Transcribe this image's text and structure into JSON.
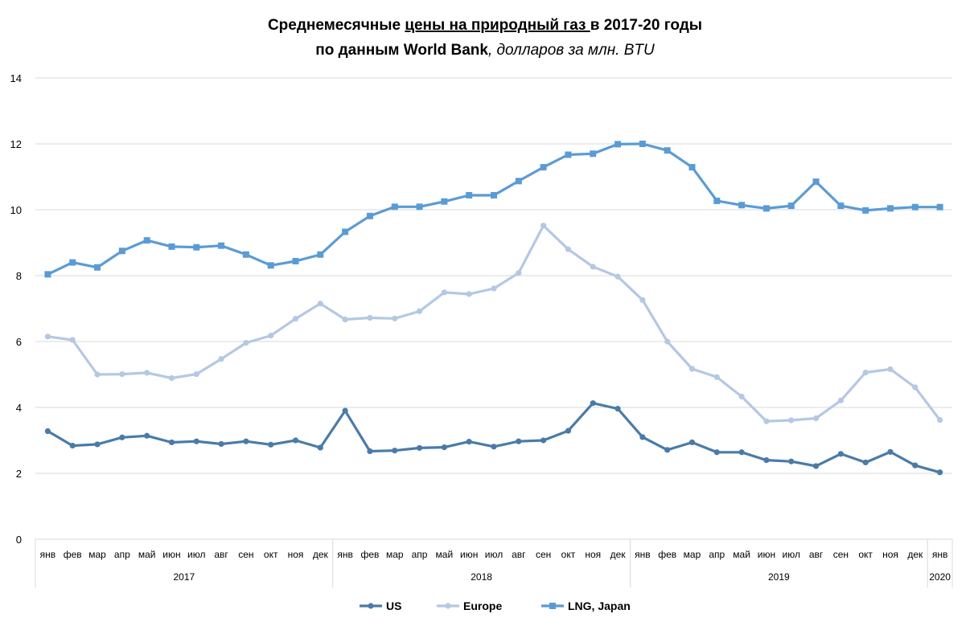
{
  "chart_data": {
    "type": "line",
    "title_line1_pre": "Среднемесячные ",
    "title_line1_underlined": "цены на природный газ ",
    "title_line1_post": "в 2017-20 годы",
    "title_line2_bold": "по данным World Bank",
    "title_line2_italic": ", долларов за млн. BTU",
    "ylim": [
      0,
      14
    ],
    "yticks": [
      "0",
      "2",
      "4",
      "6",
      "8",
      "10",
      "12",
      "14"
    ],
    "grid": true,
    "legend_position": "bottom",
    "months": [
      "янв",
      "фев",
      "мар",
      "апр",
      "май",
      "июн",
      "июл",
      "авг",
      "сен",
      "окт",
      "ноя",
      "дек",
      "янв",
      "фев",
      "мар",
      "апр",
      "май",
      "июн",
      "июл",
      "авг",
      "сен",
      "окт",
      "ноя",
      "дек",
      "янв",
      "фев",
      "мар",
      "апр",
      "май",
      "июн",
      "июл",
      "авг",
      "сен",
      "окт",
      "ноя",
      "дек",
      "янв"
    ],
    "years": [
      {
        "label": "2017",
        "start": 0,
        "count": 12
      },
      {
        "label": "2018",
        "start": 12,
        "count": 12
      },
      {
        "label": "2019",
        "start": 24,
        "count": 12
      },
      {
        "label": "2020",
        "start": 36,
        "count": 1
      }
    ],
    "series": [
      {
        "name": "US",
        "color": "#4a7ba8",
        "marker": "circle",
        "values": [
          3.28,
          2.84,
          2.88,
          3.09,
          3.14,
          2.94,
          2.97,
          2.89,
          2.97,
          2.87,
          3.0,
          2.78,
          3.9,
          2.67,
          2.69,
          2.77,
          2.79,
          2.96,
          2.81,
          2.97,
          3.0,
          3.29,
          4.13,
          3.96,
          3.1,
          2.71,
          2.94,
          2.64,
          2.64,
          2.4,
          2.36,
          2.22,
          2.59,
          2.33,
          2.65,
          2.24,
          2.03
        ]
      },
      {
        "name": "Europe",
        "color": "#b4c8e4",
        "marker": "circle",
        "values": [
          6.15,
          6.05,
          5.0,
          5.01,
          5.05,
          4.89,
          5.01,
          5.47,
          5.96,
          6.18,
          6.69,
          7.15,
          6.67,
          6.72,
          6.7,
          6.92,
          7.49,
          7.44,
          7.61,
          8.08,
          9.52,
          8.8,
          8.27,
          7.97,
          7.26,
          6.0,
          5.17,
          4.92,
          4.33,
          3.58,
          3.61,
          3.67,
          4.21,
          5.06,
          5.16,
          4.61,
          3.62
        ]
      },
      {
        "name": "LNG, Japan",
        "color": "#5b9bd5",
        "marker": "square",
        "values": [
          8.04,
          8.4,
          8.25,
          8.75,
          9.07,
          8.88,
          8.86,
          8.91,
          8.64,
          8.31,
          8.44,
          8.64,
          9.33,
          9.81,
          10.09,
          10.09,
          10.25,
          10.44,
          10.44,
          10.87,
          11.29,
          11.67,
          11.7,
          11.99,
          12.0,
          11.8,
          11.29,
          10.27,
          10.14,
          10.04,
          10.12,
          10.85,
          10.12,
          9.98,
          10.04,
          10.08,
          10.08
        ]
      }
    ]
  }
}
